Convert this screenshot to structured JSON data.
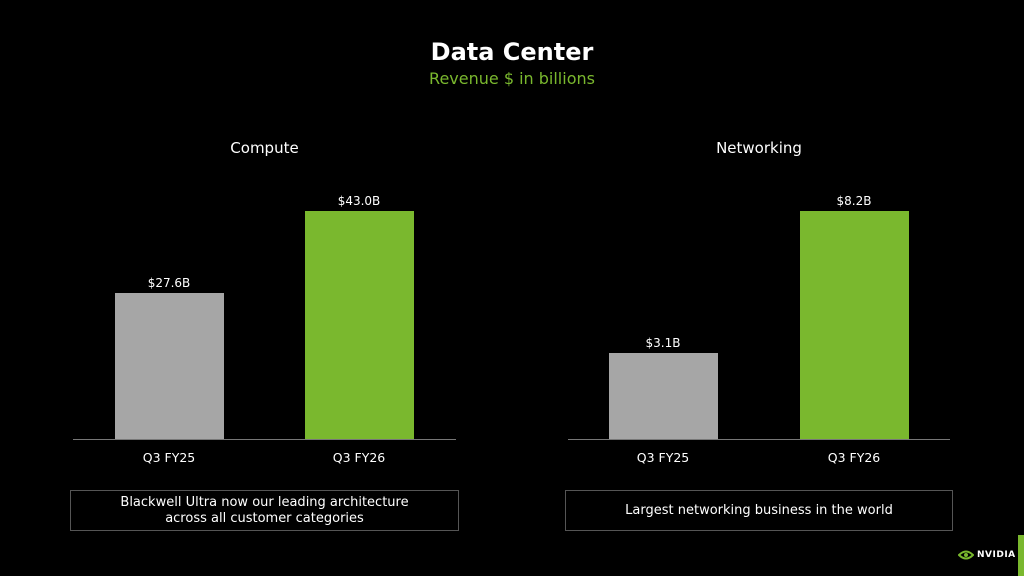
{
  "title": "Data Center",
  "subtitle": "Revenue $ in billions",
  "colors": {
    "accent": "#7ab82e",
    "prior": "#a6a6a6",
    "background": "#000000"
  },
  "chart_data": [
    {
      "type": "bar",
      "title": "Compute",
      "categories": [
        "Q3 FY25",
        "Q3 FY26"
      ],
      "values": [
        27.6,
        43.0
      ],
      "data_labels": [
        "$27.6B",
        "$43.0B"
      ],
      "colors": [
        "#a6a6a6",
        "#7ab82e"
      ],
      "note": "Blackwell Ultra now our leading architecture across all customer categories",
      "grid": false
    },
    {
      "type": "bar",
      "title": "Networking",
      "categories": [
        "Q3 FY25",
        "Q3 FY26"
      ],
      "values": [
        3.1,
        8.2
      ],
      "data_labels": [
        "$3.1B",
        "$8.2B"
      ],
      "colors": [
        "#a6a6a6",
        "#7ab82e"
      ],
      "note": "Largest networking business in the world",
      "grid": false
    }
  ],
  "logo": {
    "text": "NVIDIA",
    "icon": "nvidia-eye-icon"
  }
}
